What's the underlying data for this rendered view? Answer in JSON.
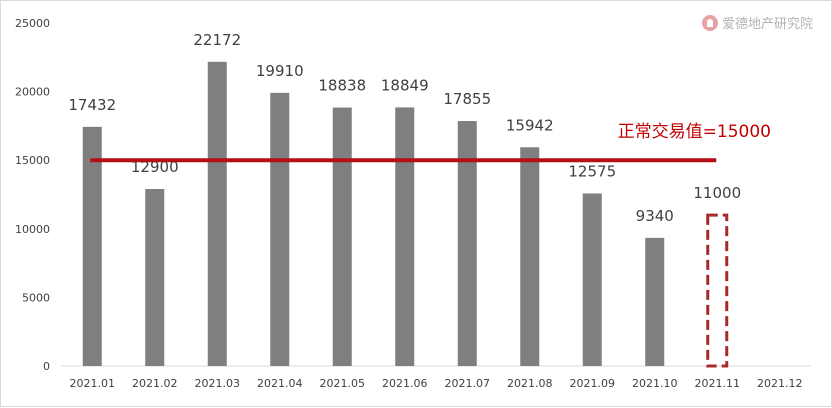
{
  "chart_data": {
    "type": "bar",
    "categories": [
      "2021.01",
      "2021.02",
      "2021.03",
      "2021.04",
      "2021.05",
      "2021.06",
      "2021.07",
      "2021.08",
      "2021.09",
      "2021.10",
      "2021.11",
      "2021.12"
    ],
    "values": [
      17432,
      12900,
      22172,
      19910,
      18838,
      18849,
      17855,
      15942,
      12575,
      9340,
      11000,
      null
    ],
    "data_labels": [
      "17432",
      "12900",
      "22172",
      "19910",
      "18838",
      "18849",
      "17855",
      "15942",
      "12575",
      "9340",
      "11000",
      ""
    ],
    "estimated_category": "2021.11",
    "yticks": [
      0,
      5000,
      10000,
      15000,
      20000,
      25000
    ],
    "ylim": [
      0,
      25000
    ],
    "reference_line": {
      "value": 15000,
      "label": "正常交易值=15000"
    },
    "grid": false,
    "legend": "none",
    "colors": {
      "bar": "#7f7f7f",
      "estimated_bar_border": "#a52a2a",
      "reference_line": "#b40f14",
      "reference_label": "#c00000",
      "axis": "#d9d9d9",
      "text": "#404040"
    }
  },
  "watermark": {
    "text": "爱德地产研究院",
    "icon": "person-circle-icon"
  }
}
